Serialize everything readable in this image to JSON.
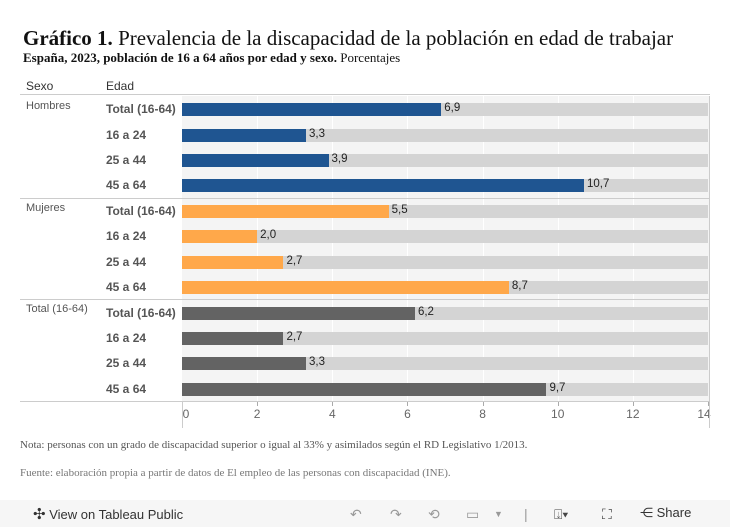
{
  "chart_data": {
    "type": "bar",
    "orientation": "horizontal",
    "title_bold": "Gráfico 1.",
    "title": "Prevalencia de la discapacidad de la población en edad de trabajar",
    "subtitle_bold": "España, 2023, población de 16 a 64 años por edad y sexo.",
    "subtitle": "Porcentajes",
    "column_headers": [
      "Sexo",
      "Edad"
    ],
    "xlim": [
      0,
      14
    ],
    "x_ticks": [
      "0",
      "2",
      "4",
      "6",
      "8",
      "10",
      "12",
      "14"
    ],
    "groups": [
      {
        "name": "Hombres",
        "color": "#1f5591",
        "categories": [
          "Total (16-64)",
          "16 a 24",
          "25 a 44",
          "45 a 64"
        ],
        "values": [
          6.9,
          3.3,
          3.9,
          10.7
        ],
        "labels": [
          "6,9",
          "3,3",
          "3,9",
          "10,7"
        ]
      },
      {
        "name": "Mujeres",
        "color": "#ffa84a",
        "categories": [
          "Total (16-64)",
          "16 a 24",
          "25 a 44",
          "45 a 64"
        ],
        "values": [
          5.5,
          2.0,
          2.7,
          8.7
        ],
        "labels": [
          "5,5",
          "2,0",
          "2,7",
          "8,7"
        ]
      },
      {
        "name": "Total (16-64)",
        "color": "#636363",
        "categories": [
          "Total (16-64)",
          "16 a 24",
          "25 a 44",
          "45 a 64"
        ],
        "values": [
          6.2,
          2.7,
          3.3,
          9.7
        ],
        "labels": [
          "6,2",
          "2,7",
          "3,3",
          "9,7"
        ]
      }
    ],
    "background_bar_color": "#d4d4d4"
  },
  "notes": {
    "nota": "Nota: personas con un grado de discapacidad superior o igual al 33% y asimilados según el RD Legislativo 1/2013.",
    "fuente": "Fuente: elaboración propia a partir de datos de El empleo de las personas con discapacidad (INE)."
  },
  "toolbar": {
    "view_label": "View on Tableau Public",
    "share_label": "Share"
  }
}
